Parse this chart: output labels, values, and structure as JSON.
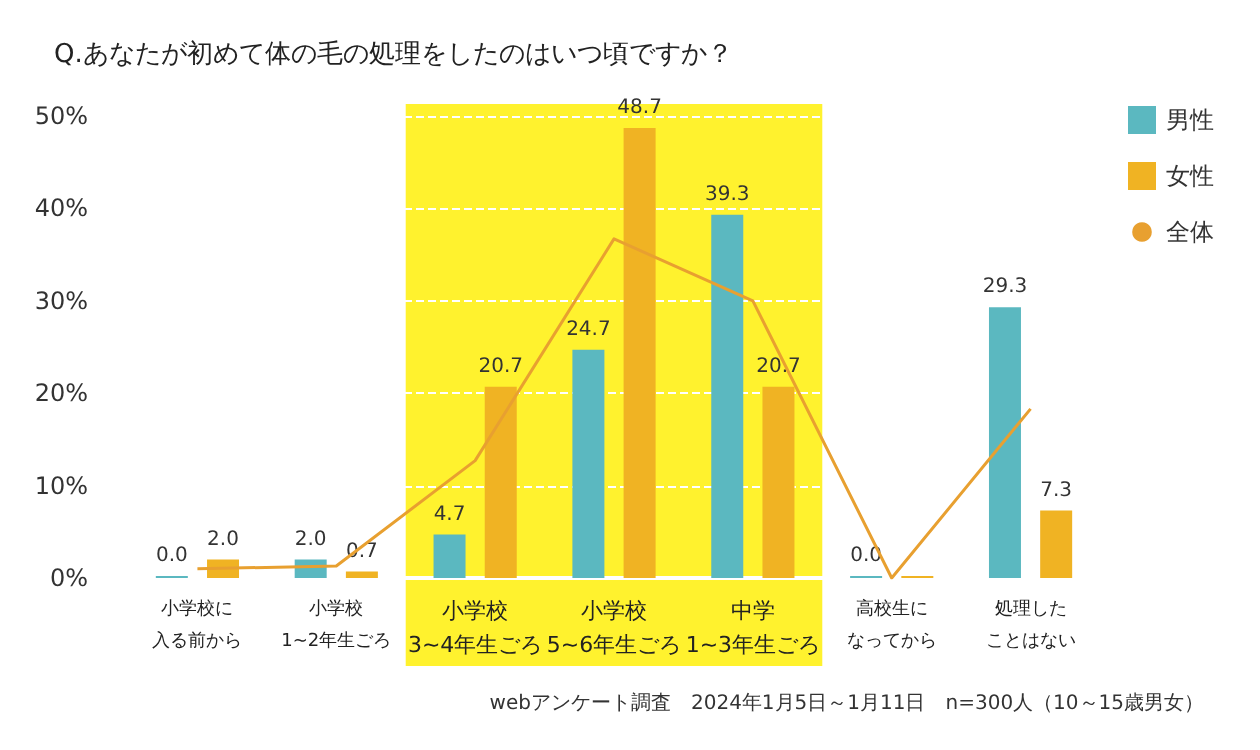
{
  "chart_data": {
    "type": "bar",
    "title": "Q.あなたが初めて体の毛の処理をしたのはいつ頃ですか？",
    "categories": [
      "小学校に入る前から",
      "小学校1~2年生ごろ",
      "小学校3~4年生ごろ",
      "小学校5~6年生ごろ",
      "中学1~3年生ごろ",
      "高校生になってから",
      "処理したことはない"
    ],
    "series": [
      {
        "name": "男性",
        "color": "#5bb8c0",
        "values": [
          0.0,
          2.0,
          4.7,
          24.7,
          39.3,
          0.0,
          29.3
        ],
        "value_labels": [
          "0.0",
          "2.0",
          "4.7",
          "24.7",
          "39.3",
          "0.0",
          "29.3"
        ]
      },
      {
        "name": "女性",
        "color": "#f0b323",
        "values": [
          2.0,
          0.7,
          20.7,
          48.7,
          20.7,
          0.0,
          7.3
        ],
        "value_labels": [
          "2.0",
          "0.7",
          "20.7",
          "48.7",
          "20.7",
          null,
          "7.3"
        ]
      },
      {
        "name": "全体",
        "type": "line",
        "color": "#e8a030",
        "values": [
          1.0,
          1.3,
          12.7,
          36.7,
          30.0,
          0.0,
          18.3
        ],
        "marker": "none"
      }
    ],
    "ylim": [
      0,
      50
    ],
    "yticks": [
      {
        "value": 0,
        "label": "0%"
      },
      {
        "value": 10,
        "label": "10%"
      },
      {
        "value": 20,
        "label": "20%"
      },
      {
        "value": 30,
        "label": "30%"
      },
      {
        "value": 40,
        "label": "40%"
      },
      {
        "value": 50,
        "label": "50%"
      }
    ],
    "grid": "y",
    "legend": "top right",
    "bands": [
      {
        "axis": "x",
        "from": "小学校3~4年生ごろ",
        "to": "中学1~3年生ごろ",
        "color": "#fff22e"
      }
    ],
    "annotations": [
      "webアンケート調査　2024年1月5日～1月11日　n=300人（10～15歳男女）"
    ]
  }
}
